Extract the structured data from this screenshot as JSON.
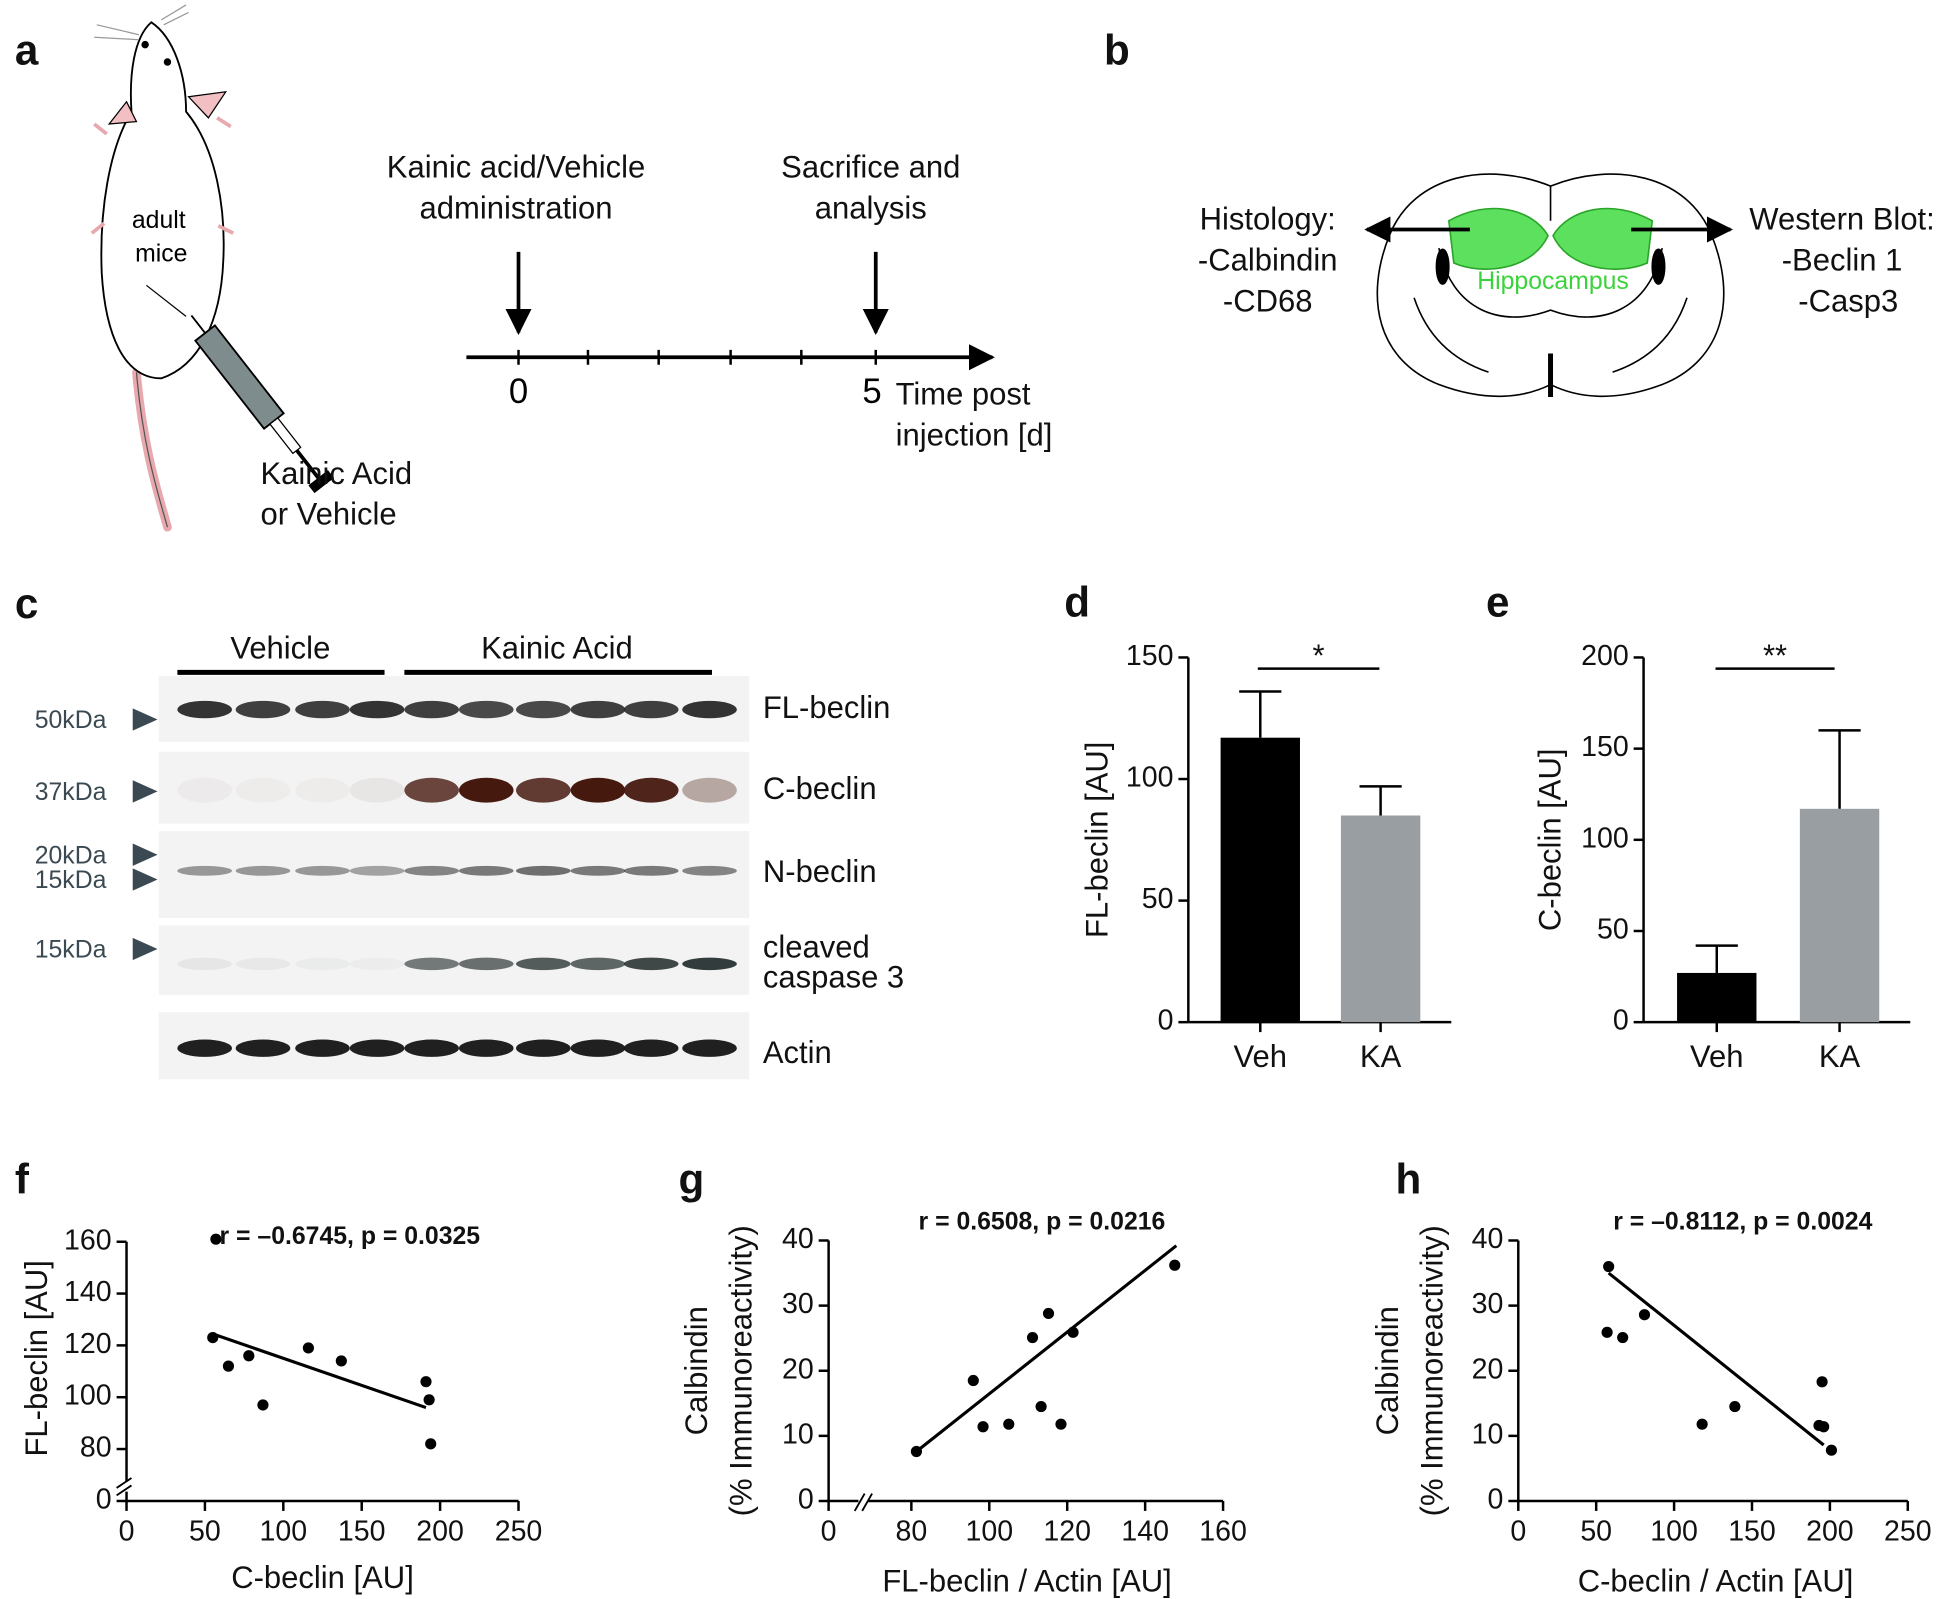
{
  "panels": {
    "a": {
      "label": "a",
      "mouse_label": [
        "adult",
        "mice"
      ],
      "injection_label": [
        "Kainic Acid",
        "or Vehicle"
      ],
      "start_event": [
        "Kainic acid/Vehicle",
        "administration"
      ],
      "end_event": [
        "Sacrifice and",
        "analysis"
      ],
      "start_day": 0,
      "end_day": 5,
      "axis_label": [
        "Time post",
        "injection [d]"
      ]
    },
    "b": {
      "label": "b",
      "left": [
        "Histology:",
        "-Calbindin",
        "-CD68"
      ],
      "region": "Hippocampus",
      "right": [
        "Western Blot:",
        "-Beclin 1",
        "-Casp3"
      ]
    },
    "c": {
      "label": "c",
      "groups": [
        "Vehicle",
        "Kainic Acid"
      ],
      "blots": [
        {
          "marker": [
            "50kDa"
          ],
          "name": [
            "FL-beclin"
          ]
        },
        {
          "marker": [
            "37kDa"
          ],
          "name": [
            "C-beclin"
          ]
        },
        {
          "marker": [
            "20kDa",
            "15kDa"
          ],
          "name": [
            "N-beclin"
          ]
        },
        {
          "marker": [
            "15kDa"
          ],
          "name": [
            "cleaved",
            "caspase 3"
          ]
        },
        {
          "name": [
            "Actin"
          ]
        }
      ]
    }
  },
  "chart_data": [
    {
      "type": "bar",
      "label": "d",
      "ylabel": "FL-beclin [AU]",
      "categories": [
        "Veh",
        "KA"
      ],
      "values": [
        117,
        85
      ],
      "errors": [
        19,
        12
      ],
      "colors": [
        "#000000",
        "#999ea3"
      ],
      "ylim": [
        0,
        150
      ],
      "yticks": [
        0,
        50,
        100,
        150
      ],
      "significance": "*"
    },
    {
      "type": "bar",
      "label": "e",
      "ylabel": "C-beclin [AU]",
      "categories": [
        "Veh",
        "KA"
      ],
      "values": [
        27,
        117
      ],
      "errors": [
        15,
        43
      ],
      "colors": [
        "#000000",
        "#999ea3"
      ],
      "ylim": [
        0,
        200
      ],
      "yticks": [
        0,
        50,
        100,
        150,
        200
      ],
      "significance": "**"
    },
    {
      "type": "scatter",
      "label": "f",
      "title": "r = –0.6745, p = 0.0325",
      "xlabel": "C-beclin [AU]",
      "ylabel": [
        "FL-beclin [AU]"
      ],
      "x": [
        57,
        55,
        65,
        78,
        87,
        116,
        137,
        191,
        193,
        194
      ],
      "values": [
        161,
        123,
        112,
        116,
        97,
        119,
        114,
        106,
        99,
        82
      ],
      "fit": {
        "x": [
          57,
          191
        ],
        "values": [
          124,
          96
        ]
      },
      "xlim": [
        0,
        250
      ],
      "xticks": [
        0,
        50,
        100,
        150,
        200,
        250
      ],
      "ylim": [
        0,
        160
      ],
      "yticks": [
        0,
        80,
        100,
        120,
        140,
        160
      ],
      "y_break": [
        0,
        70
      ]
    },
    {
      "type": "scatter",
      "label": "g",
      "title": "r = 0.6508, p = 0.0216",
      "xlabel": "FL-beclin / Actin [AU]",
      "ylabel": [
        "Calbindin",
        "(% Immunoreactivity)"
      ],
      "x": [
        81.3,
        95.9,
        98.4,
        105,
        111.1,
        113.3,
        115.2,
        118.4,
        121.5,
        147.6
      ],
      "values": [
        7.6,
        18.5,
        11.4,
        11.8,
        25.1,
        14.5,
        28.8,
        11.8,
        25.9,
        36.2
      ],
      "fit": {
        "x": [
          81.3,
          148
        ],
        "values": [
          7.6,
          39.2
        ]
      },
      "xlim": [
        0,
        160
      ],
      "xticks": [
        0,
        80,
        100,
        120,
        140,
        160
      ],
      "x_break": [
        0,
        75
      ],
      "ylim": [
        0,
        40
      ],
      "yticks": [
        0,
        10,
        20,
        30,
        40
      ]
    },
    {
      "type": "scatter",
      "label": "h",
      "title": "r = –0.8112, p = 0.0024",
      "xlabel": "C-beclin / Actin [AU]",
      "ylabel": [
        "Calbindin",
        "(% Immunoreactivity)"
      ],
      "x": [
        58,
        57,
        67,
        81,
        118,
        139,
        195,
        193,
        196,
        201
      ],
      "values": [
        36,
        25.9,
        25.1,
        28.6,
        11.8,
        14.5,
        18.3,
        11.6,
        11.4,
        7.8
      ],
      "fit": {
        "x": [
          58,
          196
        ],
        "values": [
          35,
          8.6
        ]
      },
      "xlim": [
        0,
        250
      ],
      "xticks": [
        0,
        50,
        100,
        150,
        200,
        250
      ],
      "ylim": [
        0,
        40
      ],
      "yticks": [
        0,
        10,
        20,
        30,
        40
      ]
    }
  ]
}
